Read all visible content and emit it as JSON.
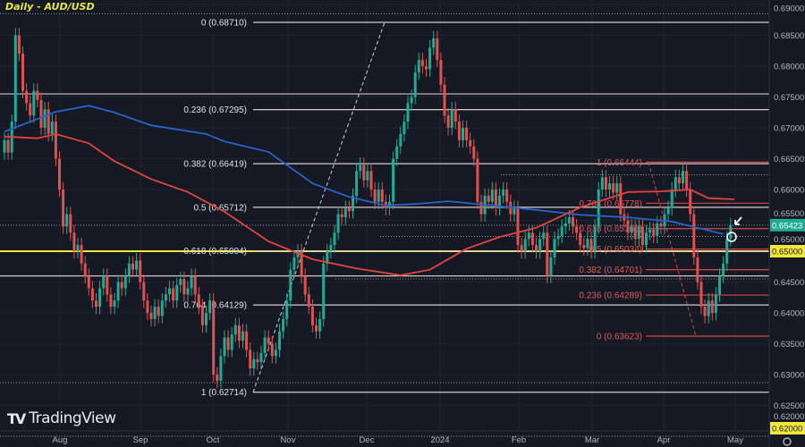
{
  "chart_data": {
    "type": "candlestick",
    "title": "Daily - AUD/USD",
    "symbol": "AUD/USD",
    "ylim": [
      0.62,
      0.69
    ],
    "y_ticks": [
      "0.69000",
      "0.68500",
      "0.68000",
      "0.67500",
      "0.67000",
      "0.66500",
      "0.66000",
      "0.65500",
      "0.65000",
      "0.64500",
      "0.64000",
      "0.63500",
      "0.63000",
      "0.62500",
      "0.62000"
    ],
    "x_ticks": [
      "Aug",
      "Sep",
      "Oct",
      "Nov",
      "Dec",
      "2024",
      "Feb",
      "Mar",
      "Apr",
      "May"
    ],
    "closes": [
      0.668,
      0.666,
      0.671,
      0.685,
      0.682,
      0.676,
      0.674,
      0.672,
      0.676,
      0.6745,
      0.67,
      0.673,
      0.669,
      0.671,
      0.665,
      0.66,
      0.654,
      0.656,
      0.653,
      0.65,
      0.651,
      0.648,
      0.646,
      0.644,
      0.642,
      0.641,
      0.644,
      0.646,
      0.643,
      0.641,
      0.642,
      0.645,
      0.644,
      0.646,
      0.648,
      0.647,
      0.6485,
      0.645,
      0.642,
      0.64,
      0.639,
      0.641,
      0.6395,
      0.642,
      0.643,
      0.644,
      0.642,
      0.6445,
      0.6455,
      0.643,
      0.644,
      0.646,
      0.643,
      0.641,
      0.638,
      0.64,
      0.642,
      0.63,
      0.629,
      0.633,
      0.636,
      0.634,
      0.6365,
      0.638,
      0.6355,
      0.637,
      0.634,
      0.631,
      0.6325,
      0.632,
      0.6335,
      0.636,
      0.635,
      0.633,
      0.634,
      0.637,
      0.639,
      0.642,
      0.647,
      0.649,
      0.65,
      0.646,
      0.643,
      0.641,
      0.638,
      0.637,
      0.639,
      0.648,
      0.65,
      0.651,
      0.653,
      0.656,
      0.6555,
      0.657,
      0.6565,
      0.659,
      0.663,
      0.664,
      0.6615,
      0.663,
      0.66,
      0.658,
      0.66,
      0.658,
      0.657,
      0.658,
      0.665,
      0.667,
      0.669,
      0.671,
      0.674,
      0.675,
      0.679,
      0.681,
      0.68,
      0.6795,
      0.683,
      0.6845,
      0.681,
      0.677,
      0.672,
      0.67,
      0.673,
      0.671,
      0.668,
      0.67,
      0.668,
      0.667,
      0.665,
      0.658,
      0.656,
      0.659,
      0.658,
      0.66,
      0.657,
      0.659,
      0.66,
      0.658,
      0.656,
      0.657,
      0.651,
      0.65,
      0.652,
      0.653,
      0.651,
      0.65,
      0.652,
      0.653,
      0.646,
      0.649,
      0.652,
      0.6525,
      0.654,
      0.6545,
      0.6555,
      0.654,
      0.653,
      0.651,
      0.6505,
      0.652,
      0.65,
      0.654,
      0.66,
      0.662,
      0.66,
      0.661,
      0.6595,
      0.661,
      0.656,
      0.655,
      0.653,
      0.654,
      0.652,
      0.654,
      0.651,
      0.653,
      0.6535,
      0.6525,
      0.6545,
      0.654,
      0.656,
      0.657,
      0.66,
      0.662,
      0.661,
      0.663,
      0.66,
      0.656,
      0.649,
      0.645,
      0.641,
      0.6395,
      0.642,
      0.64,
      0.643,
      0.646,
      0.648,
      0.652,
      0.6542
    ],
    "moving_averages": [
      {
        "color": "#2962c9",
        "points": [
          [
            0,
            0.6694
          ],
          [
            14,
            0.6726
          ],
          [
            23,
            0.6736
          ],
          [
            30,
            0.6725
          ],
          [
            40,
            0.6704
          ],
          [
            55,
            0.669
          ],
          [
            60,
            0.6678
          ],
          [
            72,
            0.6661
          ],
          [
            84,
            0.661
          ],
          [
            94,
            0.6588
          ],
          [
            104,
            0.6574
          ],
          [
            113,
            0.6577
          ],
          [
            121,
            0.6581
          ],
          [
            133,
            0.6574
          ],
          [
            145,
            0.6567
          ],
          [
            157,
            0.6559
          ],
          [
            170,
            0.6555
          ],
          [
            182,
            0.6548
          ],
          [
            196,
            0.6528
          ]
        ]
      },
      {
        "color": "#e0453f",
        "points": [
          [
            0,
            0.6686
          ],
          [
            9,
            0.6683
          ],
          [
            14,
            0.669
          ],
          [
            23,
            0.6675
          ],
          [
            30,
            0.6646
          ],
          [
            40,
            0.6617
          ],
          [
            50,
            0.6596
          ],
          [
            60,
            0.6564
          ],
          [
            72,
            0.6516
          ],
          [
            84,
            0.6487
          ],
          [
            96,
            0.6472
          ],
          [
            108,
            0.6461
          ],
          [
            116,
            0.647
          ],
          [
            126,
            0.6504
          ],
          [
            135,
            0.6523
          ],
          [
            145,
            0.6538
          ],
          [
            157,
            0.6571
          ],
          [
            170,
            0.6596
          ],
          [
            179,
            0.6597
          ],
          [
            187,
            0.66
          ],
          [
            192,
            0.6586
          ],
          [
            199,
            0.6584
          ]
        ]
      }
    ],
    "fib_white": [
      {
        "label": "0 (0.68710)",
        "value": 0.6871
      },
      {
        "label": "0.236 (0.67295)",
        "value": 0.67295
      },
      {
        "label": "0.382 (0.66419)",
        "value": 0.66419
      },
      {
        "label": "0.5 (0.65712)",
        "value": 0.65712
      },
      {
        "label": "0.618 (0.65004)",
        "value": 0.65004
      },
      {
        "label": "0.764 (0.64129)",
        "value": 0.64129
      },
      {
        "label": "1 (0.62714)",
        "value": 0.62714
      }
    ],
    "fib_red": [
      {
        "label": "1 (0.66444)",
        "value": 0.66444
      },
      {
        "label": "0.764 (0.65778)",
        "value": 0.65778
      },
      {
        "label": "0.618 (0.65366)",
        "value": 0.65366
      },
      {
        "label": "0.5 (0.65034)",
        "value": 0.65034
      },
      {
        "label": "0.382 (0.64701)",
        "value": 0.64701
      },
      {
        "label": "0.236 (0.64289)",
        "value": 0.64289
      },
      {
        "label": "0 (0.63623)",
        "value": 0.63623
      }
    ],
    "support_lines": [
      0.6755,
      0.646,
      0.65
    ],
    "current_price": {
      "label": "0.65423",
      "value": 0.65423,
      "color": "#22ab94"
    },
    "marked_level": {
      "label": "0.65000",
      "value": 0.65,
      "color": "#f2e63a"
    },
    "bottom_level": {
      "label": "0.62000",
      "value": 0.62,
      "color": "#f2e63a"
    },
    "colors": {
      "up": "#22ab94",
      "down": "#e0514f",
      "background": "#151924"
    }
  },
  "branding": {
    "logo_text": "TradingView"
  }
}
